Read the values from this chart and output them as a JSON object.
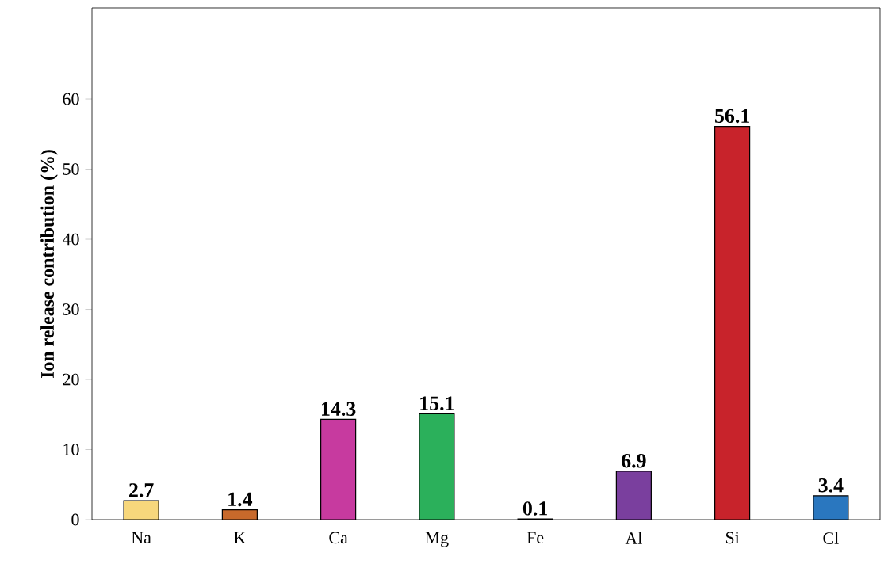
{
  "chart_data": {
    "type": "bar",
    "ylabel": "Ion release contribution (%)",
    "categories": [
      "Na",
      "K",
      "Ca",
      "Mg",
      "Fe",
      "Al",
      "Si",
      "Cl"
    ],
    "values": [
      2.7,
      1.4,
      14.3,
      15.1,
      0.1,
      6.9,
      56.1,
      3.4
    ],
    "colors": [
      "#f7d77c",
      "#c8692b",
      "#c73a9f",
      "#2bb05b",
      "#a0a0a0",
      "#7a3f9e",
      "#c8232b",
      "#2a77bf"
    ],
    "ylim": [
      0,
      73
    ],
    "yticks": [
      0,
      10,
      20,
      30,
      40,
      50,
      60
    ],
    "data_labels": true,
    "grid": false
  }
}
